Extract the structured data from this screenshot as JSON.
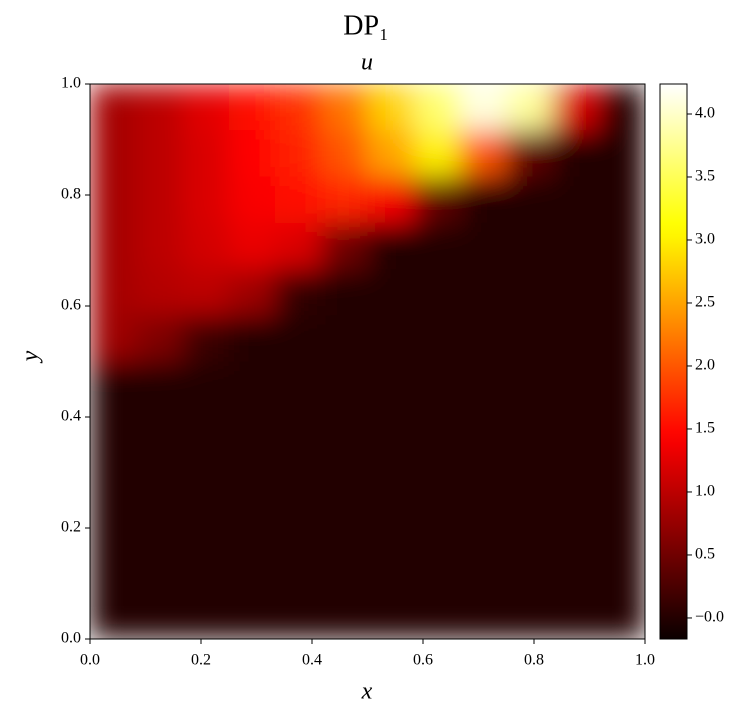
{
  "chart_data": {
    "type": "heatmap",
    "title": "DP₁",
    "subtitle": "u",
    "x_label": "x",
    "y_label": "y",
    "xlim": [
      0,
      1
    ],
    "ylim": [
      0,
      1
    ],
    "xticks": [
      {
        "value": 0,
        "label": "0.0"
      },
      0.2,
      0.4,
      0.6,
      0.8,
      {
        "value": 1,
        "label": "1.0"
      }
    ],
    "yticks": [
      {
        "value": 0,
        "label": "0.0"
      },
      0.2,
      0.4,
      0.6,
      0.8,
      {
        "value": 1,
        "label": "1.0"
      }
    ],
    "colormap": "hot",
    "clim": [
      -0.167,
      4.238
    ],
    "cticks": [
      {
        "value": 0,
        "label": "−0.0"
      },
      0.5,
      {
        "value": 1,
        "label": "1.0"
      },
      1.5,
      {
        "value": 2,
        "label": "2.0"
      },
      2.5,
      {
        "value": 3,
        "label": "3.0"
      },
      3.5,
      {
        "value": 4,
        "label": "4.0"
      }
    ],
    "z": [
      [
        0.85,
        1.0,
        1.25,
        1.5,
        1.75,
        2.2,
        2.8,
        3.6,
        4.1,
        3.8,
        1.2,
        0
      ],
      [
        0.85,
        1.0,
        1.2,
        1.45,
        1.65,
        2.0,
        2.5,
        3.0,
        2.0,
        0.4,
        0,
        0
      ],
      [
        0.85,
        1.0,
        1.2,
        1.4,
        1.55,
        1.7,
        1.4,
        0.4,
        0,
        0,
        0,
        0
      ],
      [
        0.85,
        1.0,
        1.15,
        1.3,
        1.2,
        0.5,
        0,
        0,
        0,
        0,
        0,
        0
      ],
      [
        0.85,
        0.95,
        1.0,
        0.8,
        0.1,
        0,
        0,
        0,
        0,
        0,
        0,
        0
      ],
      [
        0.8,
        0.6,
        0.15,
        0,
        0,
        0,
        0,
        0,
        0,
        0,
        0,
        0
      ],
      [
        0,
        0,
        0,
        0,
        0,
        0,
        0,
        0,
        0,
        0,
        0,
        0
      ],
      [
        0,
        0,
        0,
        0,
        0,
        0,
        0,
        0,
        0,
        0,
        0,
        0
      ],
      [
        0,
        0,
        0,
        0,
        0,
        0,
        0,
        0,
        0,
        0,
        0,
        0
      ],
      [
        0,
        0,
        0,
        0,
        0,
        0,
        0,
        0,
        0,
        0,
        0,
        0
      ],
      [
        0,
        0,
        0,
        0,
        0,
        0,
        0,
        0,
        0,
        0,
        0,
        0
      ],
      [
        0,
        0,
        0,
        0,
        0,
        0,
        0,
        0,
        0,
        0,
        0,
        0
      ]
    ]
  }
}
